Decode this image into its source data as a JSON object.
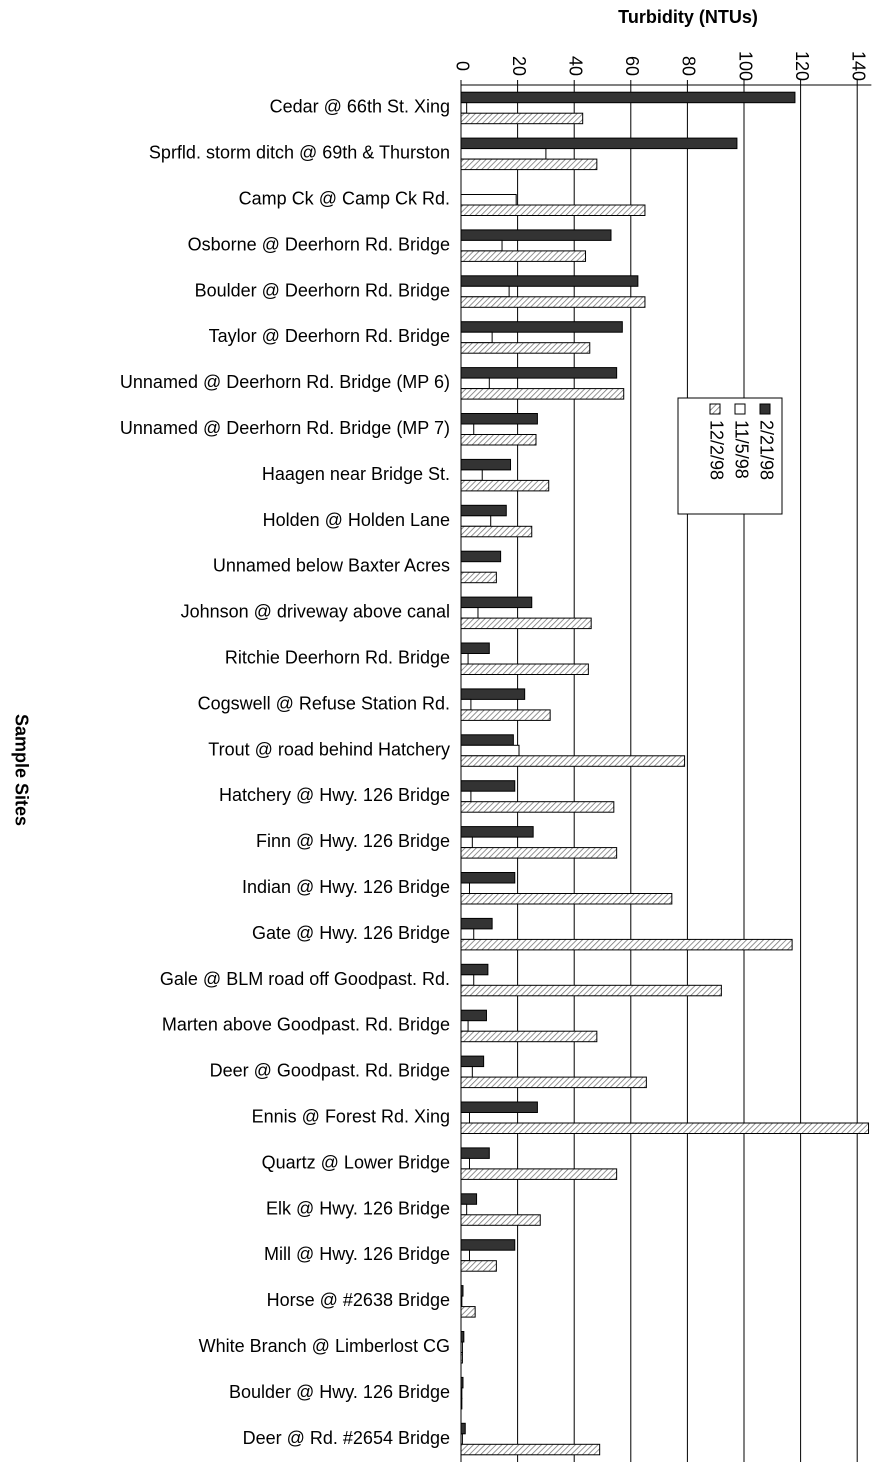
{
  "chart_data": {
    "type": "bar",
    "orientation": "horizontal",
    "title": "Turbidity (NTUs)",
    "y_label": "Sample Sites",
    "categories": [
      "Cedar @ 66th St. Xing",
      "Sprfld. storm ditch @ 69th & Thurston",
      "Camp Ck @ Camp Ck Rd.",
      "Osborne @ Deerhorn Rd. Bridge",
      "Boulder @ Deerhorn Rd. Bridge",
      "Taylor @ Deerhorn Rd. Bridge",
      "Unnamed @ Deerhorn Rd. Bridge (MP 6)",
      "Unnamed @ Deerhorn Rd. Bridge (MP 7)",
      "Haagen near Bridge St.",
      "Holden @ Holden Lane",
      "Unnamed below Baxter Acres",
      "Johnson @ driveway above canal",
      "Ritchie Deerhorn Rd. Bridge",
      "Cogswell @ Refuse Station Rd.",
      "Trout @ road behind Hatchery",
      "Hatchery @ Hwy. 126 Bridge",
      "Finn @ Hwy. 126 Bridge",
      "Indian @ Hwy. 126 Bridge",
      "Gate @ Hwy. 126 Bridge",
      "Gale @ BLM road off Goodpast. Rd.",
      "Marten above Goodpast. Rd. Bridge",
      "Deer @ Goodpast. Rd. Bridge",
      "Ennis @ Forest Rd. Xing",
      "Quartz @ Lower Bridge",
      "Elk @ Hwy. 126 Bridge",
      "Mill @ Hwy. 126 Bridge",
      "Horse @ #2638 Bridge",
      "White Branch @ Limberlost CG",
      "Boulder @ Hwy. 126 Bridge",
      "Deer @ Rd. #2654 Bridge"
    ],
    "series": [
      {
        "name": "2/21/98",
        "color": "#333333",
        "hatch": false,
        "values": [
          118,
          97.5,
          0,
          53,
          62.5,
          57,
          55,
          27,
          17.5,
          16,
          14,
          25,
          10,
          22.5,
          18.5,
          19,
          25.5,
          19,
          11,
          9.5,
          9,
          8,
          27,
          10,
          5.5,
          19,
          0.7,
          1,
          0.7,
          1.5
        ]
      },
      {
        "name": "11/5/98",
        "color": "#ffffff",
        "hatch": false,
        "values": [
          2,
          30,
          19.5,
          14.5,
          17,
          11,
          10,
          4.5,
          7.5,
          10.5,
          0,
          6,
          2.5,
          3.5,
          20.5,
          3.5,
          4,
          3,
          4.5,
          4.5,
          2.5,
          4,
          3,
          3,
          2,
          3,
          0.3,
          0.5,
          0.3,
          0.5
        ]
      },
      {
        "name": "12/2/98",
        "color": "#777777",
        "hatch": true,
        "values": [
          43,
          48,
          65,
          44,
          65,
          45.5,
          57.5,
          26.5,
          31,
          25,
          12.5,
          46,
          45,
          31.5,
          79,
          54,
          55,
          74.5,
          117,
          92,
          48,
          65.5,
          144,
          55,
          28,
          12.5,
          5,
          0.5,
          0.3,
          49
        ]
      }
    ],
    "xlim": [
      0,
      145
    ],
    "xticks": [
      0,
      20,
      40,
      60,
      80,
      100,
      120,
      140
    ],
    "grid": true
  }
}
